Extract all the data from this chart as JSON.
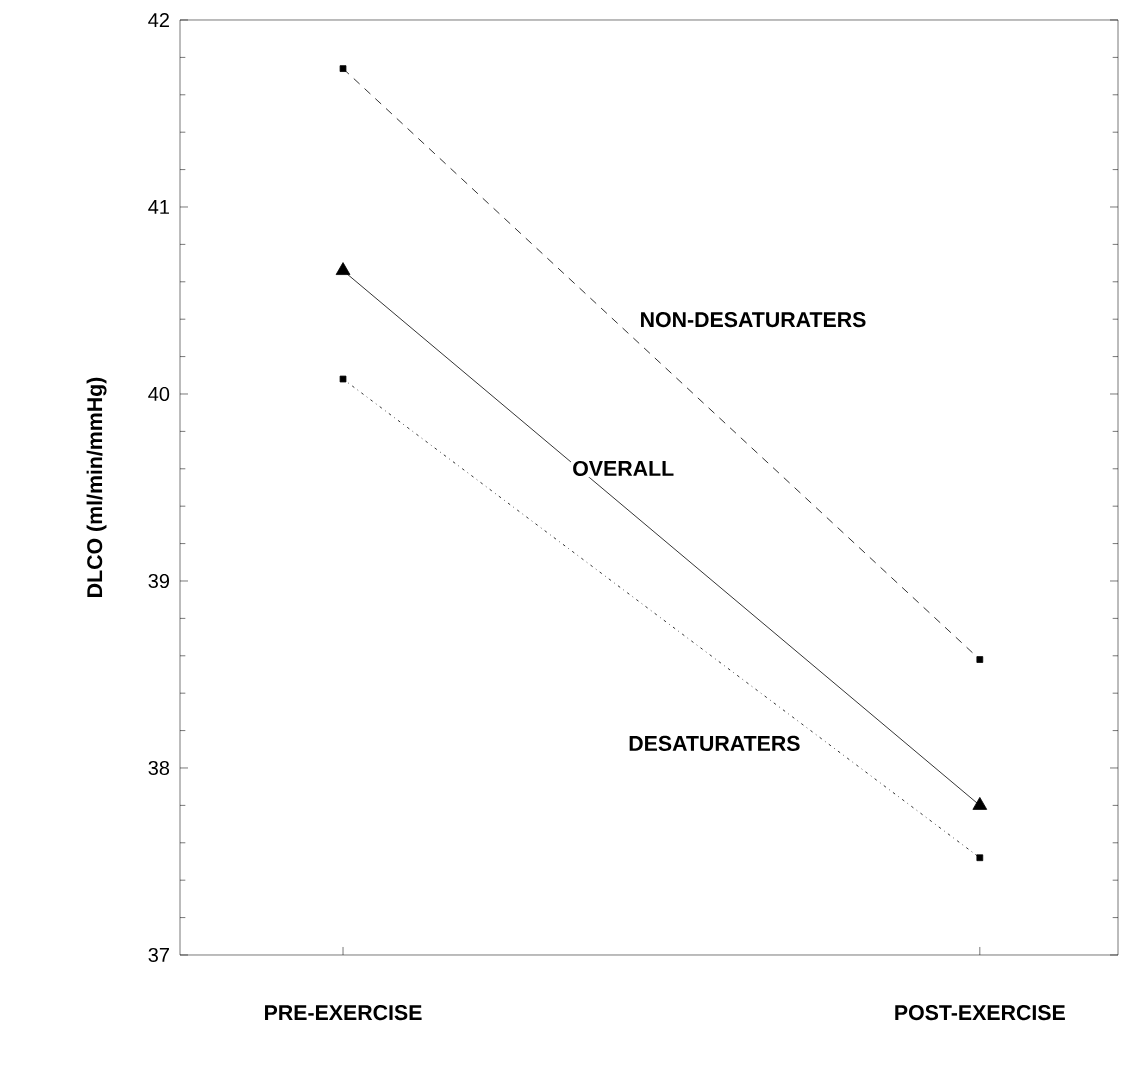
{
  "chart_data": {
    "type": "line",
    "ylabel": "DLCO (ml/min/mmHg)",
    "categories": [
      "PRE-EXERCISE",
      "POST-EXERCISE"
    ],
    "series": [
      {
        "name": "NON-DESATURATERS",
        "color": "#000000",
        "values": [
          41.74,
          38.58
        ],
        "marker": "square",
        "line_style": "dashed"
      },
      {
        "name": "OVERALL",
        "color": "#000000",
        "values": [
          40.66,
          37.8
        ],
        "marker": "triangle",
        "line_style": "solid"
      },
      {
        "name": "DESATURATERS",
        "color": "#000000",
        "values": [
          40.08,
          37.52
        ],
        "marker": "square",
        "line_style": "dotted"
      }
    ],
    "ylim": [
      37,
      42
    ],
    "yticks": [
      37,
      38,
      39,
      40,
      41,
      42
    ],
    "grid": false
  }
}
